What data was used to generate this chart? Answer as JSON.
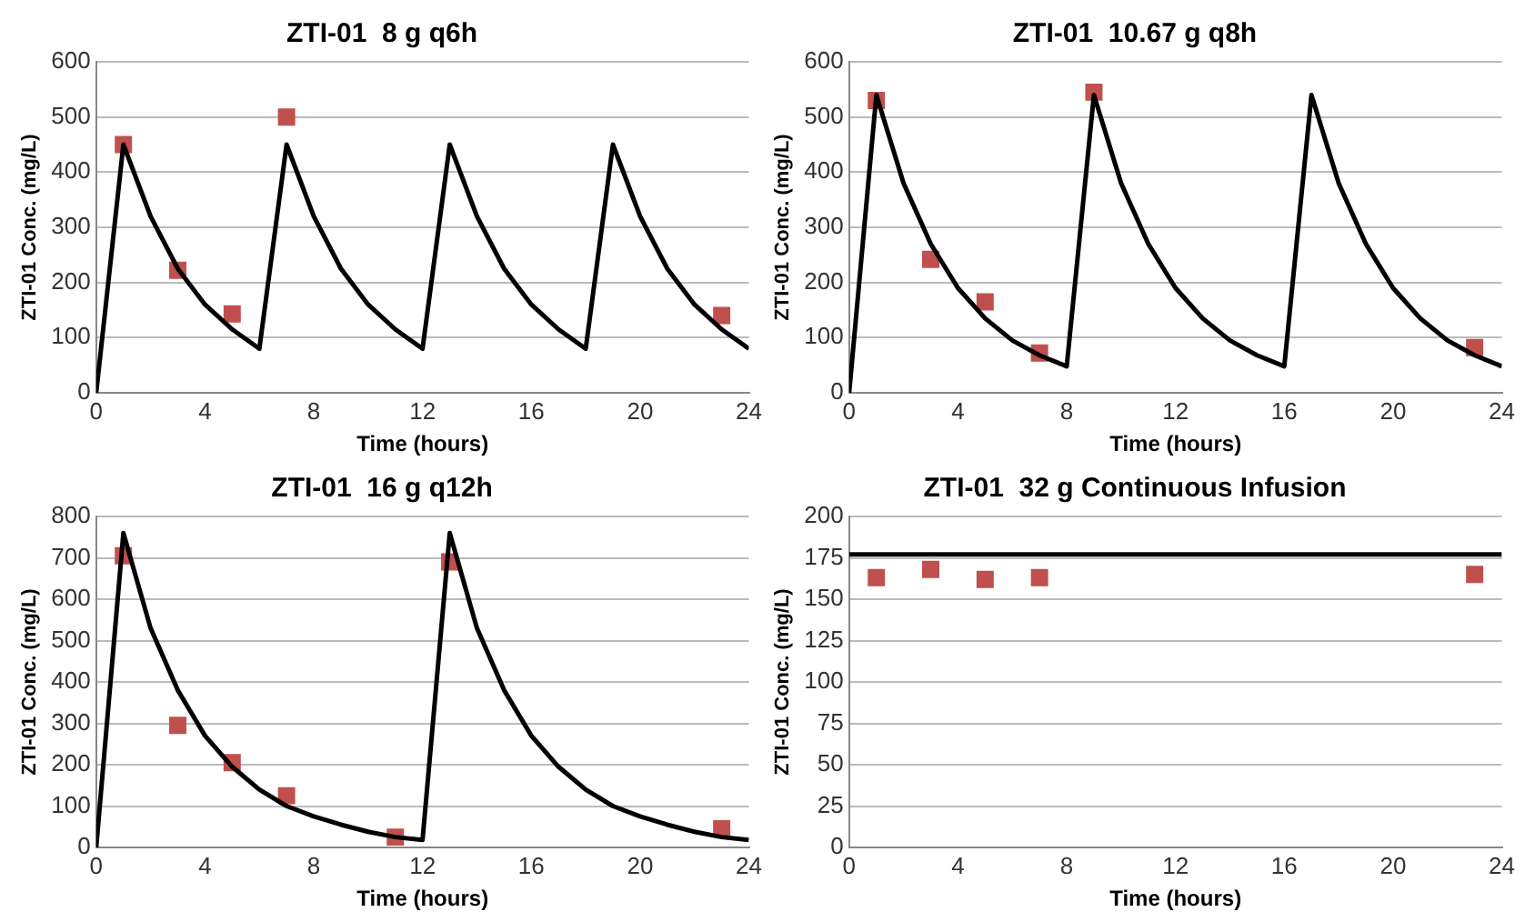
{
  "chart_data": [
    {
      "type": "line",
      "title": "ZTI-01  8 g q6h",
      "xlabel": "Time (hours)",
      "ylabel": "ZTI-01 Conc. (mg/L)",
      "xlim": [
        0,
        24
      ],
      "xticks": [
        0,
        4,
        8,
        12,
        16,
        20,
        24
      ],
      "ylim": [
        0,
        600
      ],
      "yticks": [
        0,
        100,
        200,
        300,
        400,
        500,
        600
      ],
      "grid": "y",
      "legend": false,
      "series": [
        {
          "type": "line",
          "marker": "none",
          "color": "#000000",
          "x": [
            0,
            1,
            2,
            3,
            4,
            5,
            6,
            7,
            8,
            9,
            10,
            11,
            12,
            13,
            14,
            15,
            16,
            17,
            18,
            19,
            20,
            21,
            22,
            23,
            24
          ],
          "values": [
            0,
            450,
            320,
            225,
            160,
            115,
            80,
            450,
            320,
            225,
            160,
            115,
            80,
            450,
            320,
            225,
            160,
            115,
            80,
            450,
            320,
            225,
            160,
            115,
            80
          ]
        },
        {
          "type": "scatter",
          "marker": "square",
          "color": "#c0504d",
          "x": [
            1,
            3,
            5,
            7,
            23
          ],
          "values": [
            450,
            222,
            143,
            500,
            140
          ]
        }
      ]
    },
    {
      "type": "line",
      "title": "ZTI-01  10.67 g q8h",
      "xlabel": "Time (hours)",
      "ylabel": "ZTI-01 Conc. (mg/L)",
      "xlim": [
        0,
        24
      ],
      "xticks": [
        0,
        4,
        8,
        12,
        16,
        20,
        24
      ],
      "ylim": [
        0,
        600
      ],
      "yticks": [
        0,
        100,
        200,
        300,
        400,
        500,
        600
      ],
      "grid": "y",
      "legend": false,
      "series": [
        {
          "type": "line",
          "marker": "none",
          "color": "#000000",
          "x": [
            0,
            1,
            2,
            3,
            4,
            5,
            6,
            7,
            8,
            9,
            10,
            11,
            12,
            13,
            14,
            15,
            16,
            17,
            18,
            19,
            20,
            21,
            22,
            23,
            24
          ],
          "values": [
            0,
            540,
            380,
            270,
            190,
            135,
            95,
            68,
            48,
            540,
            380,
            270,
            190,
            135,
            95,
            68,
            48,
            540,
            380,
            270,
            190,
            135,
            95,
            68,
            48
          ]
        },
        {
          "type": "scatter",
          "marker": "square",
          "color": "#c0504d",
          "x": [
            1,
            3,
            5,
            7,
            9,
            23
          ],
          "values": [
            530,
            242,
            165,
            72,
            545,
            82
          ]
        }
      ]
    },
    {
      "type": "line",
      "title": "ZTI-01  16 g q12h",
      "xlabel": "Time (hours)",
      "ylabel": "ZTI-01 Conc. (mg/L)",
      "xlim": [
        0,
        24
      ],
      "xticks": [
        0,
        4,
        8,
        12,
        16,
        20,
        24
      ],
      "ylim": [
        0,
        800
      ],
      "yticks": [
        0,
        100,
        200,
        300,
        400,
        500,
        600,
        700,
        800
      ],
      "grid": "y",
      "legend": false,
      "series": [
        {
          "type": "line",
          "marker": "none",
          "color": "#000000",
          "x": [
            0,
            1,
            2,
            3,
            4,
            5,
            6,
            7,
            8,
            9,
            10,
            11,
            12,
            13,
            14,
            15,
            16,
            17,
            18,
            19,
            20,
            21,
            22,
            23,
            24
          ],
          "values": [
            0,
            760,
            530,
            380,
            270,
            195,
            140,
            100,
            75,
            55,
            38,
            25,
            18,
            760,
            530,
            380,
            270,
            195,
            140,
            100,
            75,
            55,
            38,
            25,
            18
          ]
        },
        {
          "type": "scatter",
          "marker": "square",
          "color": "#c0504d",
          "x": [
            1,
            3,
            5,
            7,
            11,
            13,
            23
          ],
          "values": [
            705,
            295,
            205,
            125,
            25,
            690,
            45
          ]
        }
      ]
    },
    {
      "type": "line",
      "title": "ZTI-01  32 g Continuous Infusion",
      "xlabel": "Time (hours)",
      "ylabel": "ZTI-01 Conc. (mg/L)",
      "xlim": [
        0,
        24
      ],
      "xticks": [
        0,
        4,
        8,
        12,
        16,
        20,
        24
      ],
      "ylim": [
        0,
        200
      ],
      "yticks": [
        0,
        25,
        50,
        75,
        100,
        125,
        150,
        175,
        200
      ],
      "grid": "y",
      "legend": false,
      "series": [
        {
          "type": "line",
          "marker": "none",
          "color": "#000000",
          "x": [
            0,
            24
          ],
          "values": [
            177,
            177
          ]
        },
        {
          "type": "scatter",
          "marker": "square",
          "color": "#c0504d",
          "x": [
            1,
            3,
            5,
            7,
            23
          ],
          "values": [
            163,
            168,
            162,
            163,
            165
          ]
        }
      ]
    }
  ]
}
